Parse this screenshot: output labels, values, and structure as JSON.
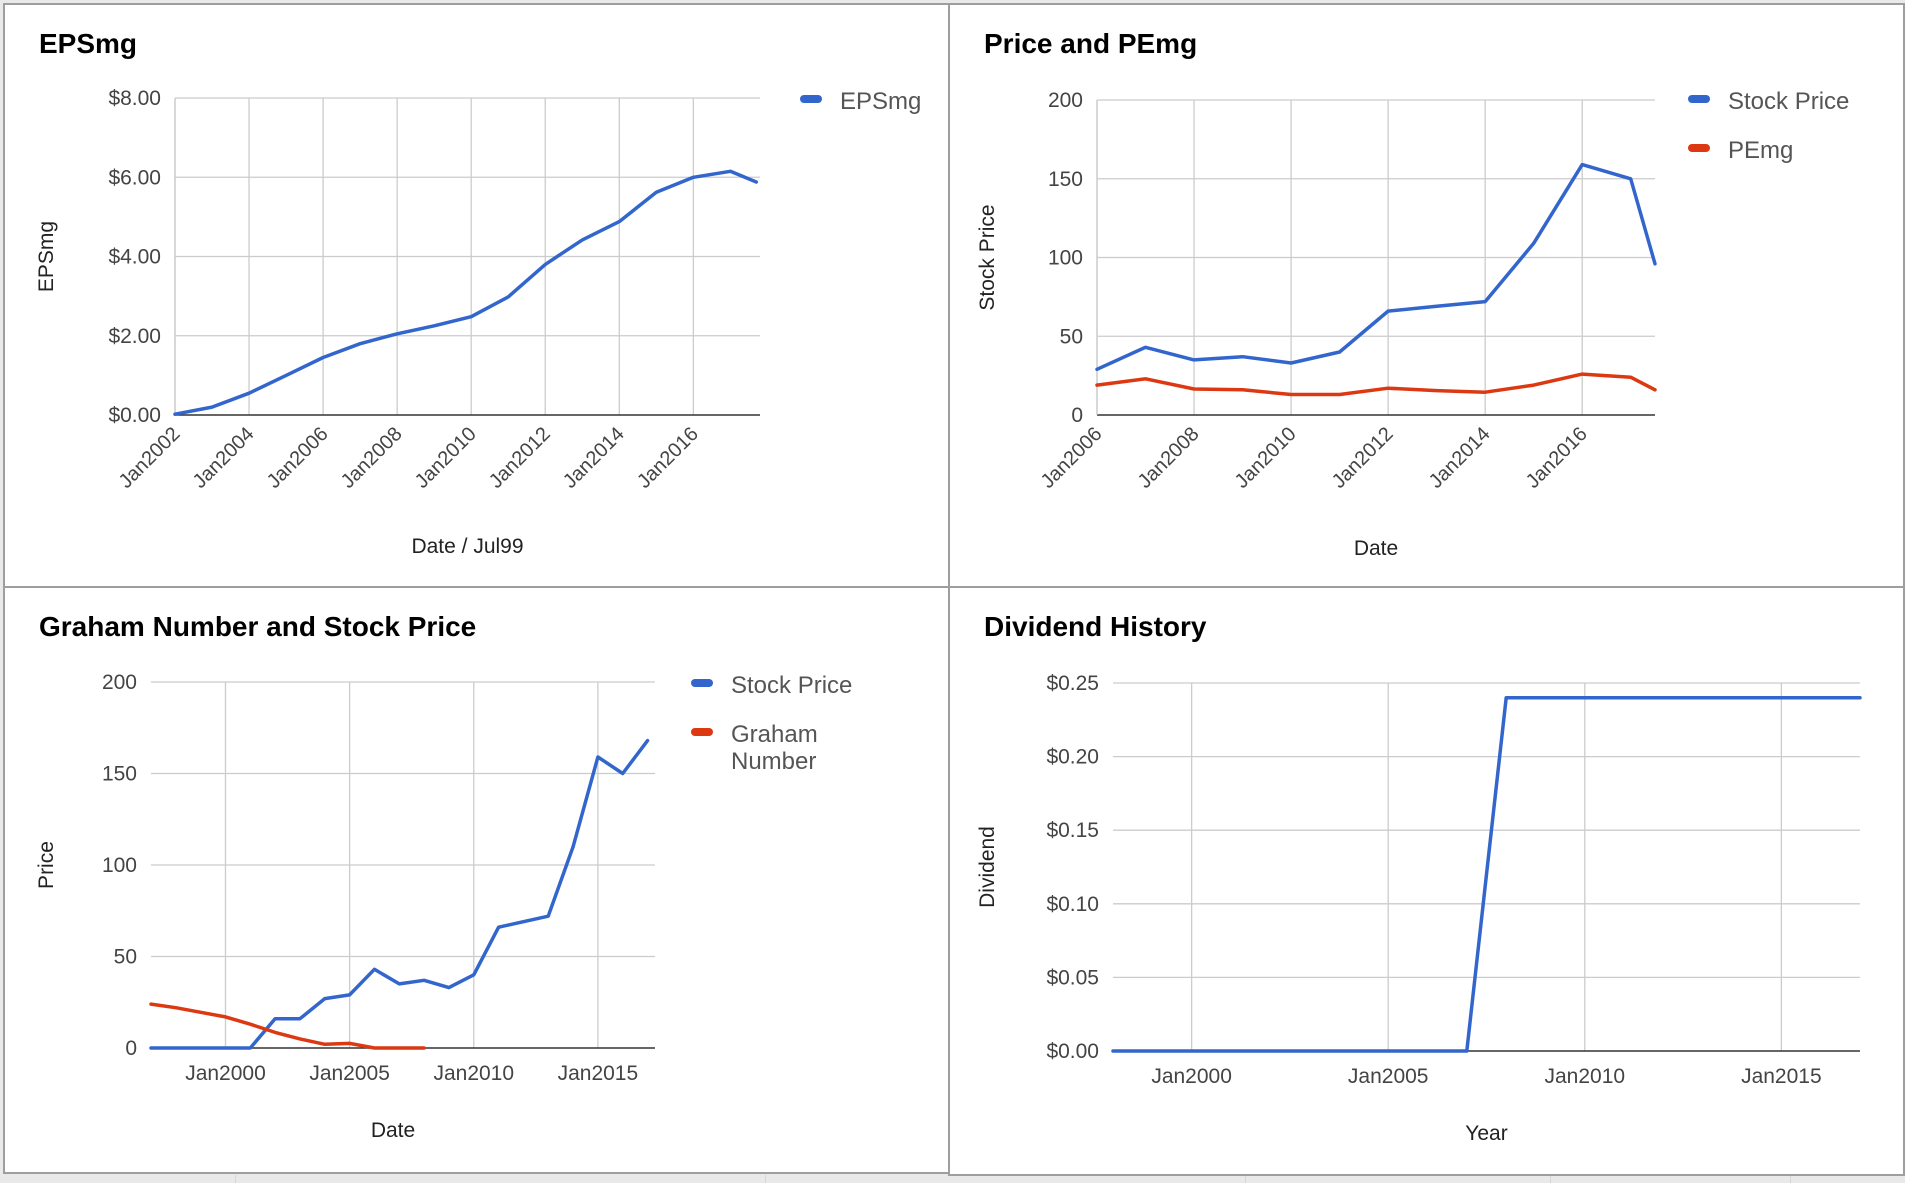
{
  "colors": {
    "blue": "#3366cc",
    "red": "#dc3912",
    "grid": "#cccccc",
    "axis": "#333333",
    "text": "#444444",
    "title": "#000000"
  },
  "chart_data": [
    {
      "id": "epsmg",
      "type": "line",
      "title": "EPSmg",
      "xlabel": "Date / Jul99",
      "ylabel": "EPSmg",
      "x_ticks": [
        "Jan2002",
        "Jan2004",
        "Jan2006",
        "Jan2008",
        "Jan2010",
        "Jan2012",
        "Jan2014",
        "Jan2016"
      ],
      "y_ticks": [
        "$0.00",
        "$2.00",
        "$4.00",
        "$6.00",
        "$8.00"
      ],
      "ylim": [
        0,
        8
      ],
      "xlim": [
        2002,
        2017.8
      ],
      "legend_position": "right",
      "series": [
        {
          "name": "EPSmg",
          "color": "#3366cc",
          "x": [
            2002,
            2003,
            2004,
            2005,
            2006,
            2007,
            2008,
            2009,
            2010,
            2011,
            2012,
            2013,
            2014,
            2015,
            2016,
            2017,
            2017.7
          ],
          "y": [
            0.02,
            0.2,
            0.55,
            1.0,
            1.45,
            1.8,
            2.05,
            2.25,
            2.48,
            2.98,
            3.8,
            4.42,
            4.88,
            5.62,
            6.0,
            6.15,
            5.88
          ]
        }
      ]
    },
    {
      "id": "price-pemg",
      "type": "line",
      "title": "Price and PEmg",
      "xlabel": "Date",
      "ylabel": "Stock Price",
      "x_ticks": [
        "Jan2006",
        "Jan2008",
        "Jan2010",
        "Jan2012",
        "Jan2014",
        "Jan2016"
      ],
      "y_ticks": [
        "0",
        "50",
        "100",
        "150",
        "200"
      ],
      "ylim": [
        0,
        200
      ],
      "xlim": [
        2006,
        2017.5
      ],
      "legend_position": "right",
      "series": [
        {
          "name": "Stock Price",
          "color": "#3366cc",
          "x": [
            2006,
            2007,
            2008,
            2009,
            2010,
            2011,
            2012,
            2013,
            2014,
            2015,
            2016,
            2017,
            2017.5
          ],
          "y": [
            29,
            43,
            35,
            37,
            33,
            40,
            66,
            69,
            72,
            109,
            159,
            150,
            96
          ]
        },
        {
          "name": "PEmg",
          "color": "#dc3912",
          "x": [
            2006,
            2007,
            2008,
            2009,
            2010,
            2011,
            2012,
            2013,
            2014,
            2015,
            2016,
            2017,
            2017.5
          ],
          "y": [
            19,
            23,
            16.5,
            16,
            13,
            13,
            17,
            15.5,
            14.5,
            19,
            26,
            24,
            16
          ]
        }
      ]
    },
    {
      "id": "graham",
      "type": "line",
      "title": "Graham Number and Stock Price",
      "xlabel": "Date",
      "ylabel": "Price",
      "x_ticks": [
        "Jan2000",
        "Jan2005",
        "Jan2010",
        "Jan2015"
      ],
      "y_ticks": [
        "0",
        "50",
        "100",
        "150",
        "200"
      ],
      "ylim": [
        0,
        200
      ],
      "xlim": [
        1997,
        2017.3
      ],
      "legend_position": "right",
      "series": [
        {
          "name": "Stock Price",
          "color": "#3366cc",
          "x": [
            1997,
            1998,
            1999,
            2000,
            2001,
            2002,
            2003,
            2004,
            2005,
            2006,
            2007,
            2008,
            2009,
            2010,
            2011,
            2012,
            2013,
            2014,
            2015,
            2016,
            2017
          ],
          "y": [
            0,
            0,
            0,
            0,
            0,
            16,
            16,
            27,
            29,
            43,
            35,
            37,
            33,
            40,
            66,
            69,
            72,
            110,
            159,
            150,
            168
          ]
        },
        {
          "name": "Graham Number",
          "color": "#dc3912",
          "x": [
            1997,
            1998,
            1999,
            2000,
            2001,
            2002,
            2003,
            2004,
            2005,
            2006,
            2007,
            2008
          ],
          "y": [
            24,
            22,
            19.5,
            17,
            13,
            8.5,
            5,
            2,
            2.5,
            0,
            0,
            0
          ]
        }
      ]
    },
    {
      "id": "dividend",
      "type": "line",
      "title": "Dividend History",
      "xlabel": "Year",
      "ylabel": "Dividend",
      "x_ticks": [
        "Jan2000",
        "Jan2005",
        "Jan2010",
        "Jan2015"
      ],
      "y_ticks": [
        "$0.00",
        "$0.05",
        "$0.10",
        "$0.15",
        "$0.20",
        "$0.25"
      ],
      "ylim": [
        0,
        0.25
      ],
      "xlim": [
        1998,
        2017
      ],
      "legend_position": "none",
      "series": [
        {
          "name": "",
          "color": "#3366cc",
          "x": [
            1998,
            2007,
            2008,
            2017
          ],
          "y": [
            0,
            0,
            0.24,
            0.24
          ]
        }
      ]
    }
  ]
}
